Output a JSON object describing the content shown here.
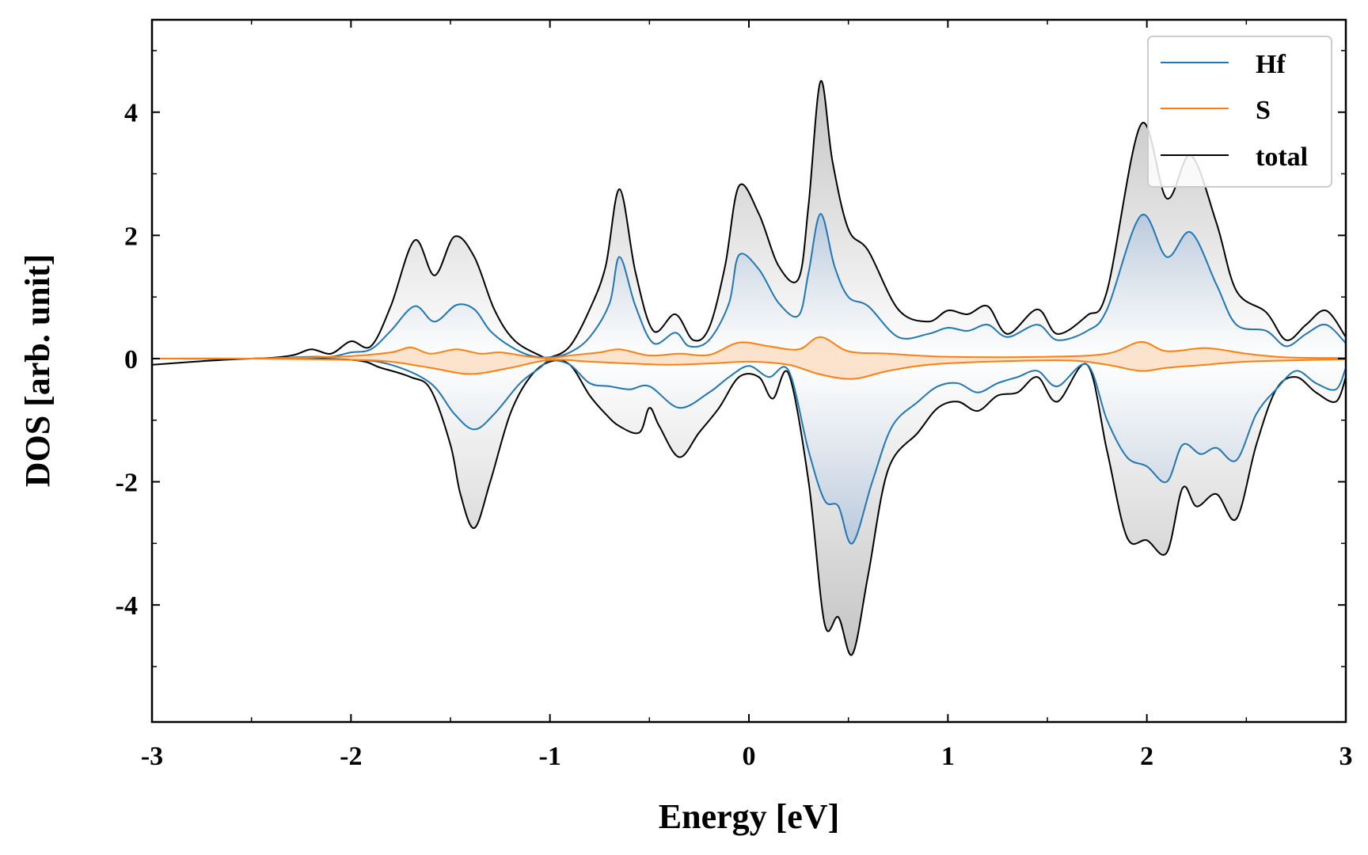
{
  "chart_data": {
    "type": "line",
    "title": "",
    "xlabel": "Energy [eV]",
    "ylabel": "DOS [arb. unit]",
    "xlim": [
      -3,
      3
    ],
    "ylim": [
      -5.9,
      5.5
    ],
    "x_ticks": [
      -3,
      -2,
      -1,
      0,
      1,
      2,
      3
    ],
    "x_tick_labels": [
      "-3",
      "-2",
      "-1",
      "0",
      "1",
      "2",
      "3"
    ],
    "y_ticks": [
      -4,
      -2,
      0,
      2,
      4
    ],
    "y_tick_labels": [
      "-4",
      "-2",
      "0",
      "2",
      "4"
    ],
    "legend_position": "top-right",
    "colors": {
      "Hf": "#1f77b4",
      "S": "#ff7f0e",
      "total": "#000000",
      "fill_total": "#d9d9d9",
      "fill_Hf": "#c8d6e5",
      "fill_S": "#fbd7b8"
    },
    "series": [
      {
        "name": "Hf",
        "color": "#1f77b4",
        "up": [
          [
            -3,
            0
          ],
          [
            -2.5,
            0
          ],
          [
            -2.2,
            0.03
          ],
          [
            -2.1,
            0.03
          ],
          [
            -2.0,
            0.1
          ],
          [
            -1.9,
            0.15
          ],
          [
            -1.8,
            0.45
          ],
          [
            -1.68,
            0.85
          ],
          [
            -1.58,
            0.6
          ],
          [
            -1.47,
            0.87
          ],
          [
            -1.38,
            0.8
          ],
          [
            -1.3,
            0.45
          ],
          [
            -1.2,
            0.2
          ],
          [
            -1.1,
            0.05
          ],
          [
            -1.0,
            0.02
          ],
          [
            -0.9,
            0.1
          ],
          [
            -0.8,
            0.35
          ],
          [
            -0.7,
            0.9
          ],
          [
            -0.65,
            1.65
          ],
          [
            -0.57,
            0.85
          ],
          [
            -0.48,
            0.25
          ],
          [
            -0.37,
            0.42
          ],
          [
            -0.3,
            0.2
          ],
          [
            -0.2,
            0.3
          ],
          [
            -0.1,
            0.9
          ],
          [
            -0.05,
            1.68
          ],
          [
            0.05,
            1.45
          ],
          [
            0.15,
            0.9
          ],
          [
            0.25,
            0.7
          ],
          [
            0.3,
            1.4
          ],
          [
            0.36,
            2.35
          ],
          [
            0.43,
            1.5
          ],
          [
            0.5,
            1.0
          ],
          [
            0.6,
            0.85
          ],
          [
            0.75,
            0.35
          ],
          [
            0.9,
            0.4
          ],
          [
            1.0,
            0.5
          ],
          [
            1.1,
            0.45
          ],
          [
            1.2,
            0.55
          ],
          [
            1.3,
            0.35
          ],
          [
            1.45,
            0.55
          ],
          [
            1.55,
            0.3
          ],
          [
            1.7,
            0.45
          ],
          [
            1.8,
            0.8
          ],
          [
            1.97,
            2.32
          ],
          [
            2.1,
            1.65
          ],
          [
            2.22,
            2.05
          ],
          [
            2.35,
            1.2
          ],
          [
            2.45,
            0.55
          ],
          [
            2.6,
            0.45
          ],
          [
            2.7,
            0.2
          ],
          [
            2.8,
            0.4
          ],
          [
            2.9,
            0.55
          ],
          [
            3.0,
            0.25
          ]
        ]
      },
      {
        "name": "S",
        "color": "#ff7f0e",
        "up": [
          [
            -3,
            0
          ],
          [
            -2.5,
            0
          ],
          [
            -2.2,
            0.02
          ],
          [
            -2.0,
            0.04
          ],
          [
            -1.8,
            0.1
          ],
          [
            -1.7,
            0.18
          ],
          [
            -1.6,
            0.08
          ],
          [
            -1.47,
            0.15
          ],
          [
            -1.35,
            0.08
          ],
          [
            -1.25,
            0.1
          ],
          [
            -1.1,
            0.03
          ],
          [
            -1.0,
            0.01
          ],
          [
            -0.9,
            0.05
          ],
          [
            -0.75,
            0.1
          ],
          [
            -0.65,
            0.15
          ],
          [
            -0.5,
            0.05
          ],
          [
            -0.35,
            0.08
          ],
          [
            -0.2,
            0.06
          ],
          [
            -0.05,
            0.26
          ],
          [
            0.1,
            0.2
          ],
          [
            0.25,
            0.15
          ],
          [
            0.36,
            0.35
          ],
          [
            0.5,
            0.12
          ],
          [
            0.7,
            0.08
          ],
          [
            1.0,
            0.03
          ],
          [
            1.5,
            0.03
          ],
          [
            1.8,
            0.08
          ],
          [
            1.97,
            0.27
          ],
          [
            2.1,
            0.12
          ],
          [
            2.3,
            0.17
          ],
          [
            2.5,
            0.08
          ],
          [
            2.7,
            0.02
          ],
          [
            3.0,
            0.01
          ]
        ],
        "down": [
          [
            -3,
            0
          ],
          [
            -2.5,
            0
          ],
          [
            -2.0,
            -0.02
          ],
          [
            -1.8,
            -0.05
          ],
          [
            -1.6,
            -0.15
          ],
          [
            -1.4,
            -0.25
          ],
          [
            -1.2,
            -0.15
          ],
          [
            -1.0,
            -0.02
          ],
          [
            -0.8,
            -0.05
          ],
          [
            -0.6,
            -0.08
          ],
          [
            -0.4,
            -0.1
          ],
          [
            -0.2,
            -0.08
          ],
          [
            0.0,
            -0.05
          ],
          [
            0.2,
            -0.1
          ],
          [
            0.35,
            -0.25
          ],
          [
            0.52,
            -0.33
          ],
          [
            0.7,
            -0.2
          ],
          [
            0.9,
            -0.1
          ],
          [
            1.2,
            -0.05
          ],
          [
            1.6,
            -0.03
          ],
          [
            1.8,
            -0.1
          ],
          [
            1.97,
            -0.2
          ],
          [
            2.1,
            -0.15
          ],
          [
            2.3,
            -0.1
          ],
          [
            2.5,
            -0.05
          ],
          [
            3.0,
            -0.01
          ]
        ]
      },
      {
        "name": "total",
        "color": "#000000",
        "up": [
          [
            -3,
            0
          ],
          [
            -2.5,
            0
          ],
          [
            -2.3,
            0.05
          ],
          [
            -2.2,
            0.15
          ],
          [
            -2.1,
            0.08
          ],
          [
            -2.0,
            0.28
          ],
          [
            -1.9,
            0.2
          ],
          [
            -1.8,
            0.85
          ],
          [
            -1.68,
            1.92
          ],
          [
            -1.58,
            1.35
          ],
          [
            -1.48,
            1.98
          ],
          [
            -1.38,
            1.65
          ],
          [
            -1.28,
            0.8
          ],
          [
            -1.18,
            0.3
          ],
          [
            -1.05,
            0.05
          ],
          [
            -1.0,
            0.02
          ],
          [
            -0.9,
            0.2
          ],
          [
            -0.8,
            0.8
          ],
          [
            -0.72,
            1.5
          ],
          [
            -0.65,
            2.75
          ],
          [
            -0.57,
            1.4
          ],
          [
            -0.48,
            0.45
          ],
          [
            -0.37,
            0.72
          ],
          [
            -0.28,
            0.3
          ],
          [
            -0.2,
            0.5
          ],
          [
            -0.12,
            1.5
          ],
          [
            -0.05,
            2.8
          ],
          [
            0.05,
            2.35
          ],
          [
            0.15,
            1.5
          ],
          [
            0.25,
            1.3
          ],
          [
            0.3,
            2.5
          ],
          [
            0.36,
            4.5
          ],
          [
            0.42,
            3.2
          ],
          [
            0.5,
            2.1
          ],
          [
            0.6,
            1.75
          ],
          [
            0.75,
            0.8
          ],
          [
            0.9,
            0.6
          ],
          [
            1.0,
            0.78
          ],
          [
            1.1,
            0.72
          ],
          [
            1.2,
            0.85
          ],
          [
            1.3,
            0.4
          ],
          [
            1.45,
            0.8
          ],
          [
            1.55,
            0.4
          ],
          [
            1.7,
            0.7
          ],
          [
            1.8,
            1.1
          ],
          [
            1.97,
            3.8
          ],
          [
            2.1,
            2.6
          ],
          [
            2.22,
            3.3
          ],
          [
            2.35,
            2.2
          ],
          [
            2.45,
            1.1
          ],
          [
            2.6,
            0.75
          ],
          [
            2.7,
            0.3
          ],
          [
            2.8,
            0.55
          ],
          [
            2.9,
            0.78
          ],
          [
            3.0,
            0.35
          ]
        ],
        "down": [
          [
            -3,
            -0.1
          ],
          [
            -2.5,
            0
          ],
          [
            -2.0,
            -0.02
          ],
          [
            -1.85,
            -0.15
          ],
          [
            -1.7,
            -0.3
          ],
          [
            -1.6,
            -0.5
          ],
          [
            -1.5,
            -1.4
          ],
          [
            -1.45,
            -2.2
          ],
          [
            -1.38,
            -2.75
          ],
          [
            -1.3,
            -2.0
          ],
          [
            -1.2,
            -0.9
          ],
          [
            -1.1,
            -0.3
          ],
          [
            -1.0,
            -0.05
          ],
          [
            -0.9,
            -0.1
          ],
          [
            -0.8,
            -0.6
          ],
          [
            -0.72,
            -0.9
          ],
          [
            -0.65,
            -1.1
          ],
          [
            -0.55,
            -1.2
          ],
          [
            -0.5,
            -0.8
          ],
          [
            -0.45,
            -1.1
          ],
          [
            -0.35,
            -1.6
          ],
          [
            -0.25,
            -1.2
          ],
          [
            -0.15,
            -0.8
          ],
          [
            -0.05,
            -0.3
          ],
          [
            0.05,
            -0.3
          ],
          [
            0.12,
            -0.65
          ],
          [
            0.2,
            -0.25
          ],
          [
            0.3,
            -2.0
          ],
          [
            0.38,
            -4.3
          ],
          [
            0.45,
            -4.2
          ],
          [
            0.52,
            -4.8
          ],
          [
            0.6,
            -3.5
          ],
          [
            0.7,
            -1.8
          ],
          [
            0.85,
            -1.2
          ],
          [
            0.95,
            -0.8
          ],
          [
            1.05,
            -0.7
          ],
          [
            1.15,
            -0.85
          ],
          [
            1.25,
            -0.6
          ],
          [
            1.35,
            -0.55
          ],
          [
            1.45,
            -0.3
          ],
          [
            1.55,
            -0.7
          ],
          [
            1.7,
            -0.1
          ],
          [
            1.8,
            -1.5
          ],
          [
            1.9,
            -2.9
          ],
          [
            2.0,
            -2.95
          ],
          [
            2.1,
            -3.15
          ],
          [
            2.18,
            -2.1
          ],
          [
            2.25,
            -2.4
          ],
          [
            2.35,
            -2.2
          ],
          [
            2.45,
            -2.6
          ],
          [
            2.55,
            -1.4
          ],
          [
            2.65,
            -0.5
          ],
          [
            2.75,
            -0.3
          ],
          [
            2.85,
            -0.55
          ],
          [
            2.95,
            -0.7
          ],
          [
            3.0,
            -0.3
          ]
        ]
      }
    ],
    "hf_down": [
      [
        -3,
        0
      ],
      [
        -2.5,
        0
      ],
      [
        -2.0,
        -0.02
      ],
      [
        -1.8,
        -0.1
      ],
      [
        -1.6,
        -0.4
      ],
      [
        -1.48,
        -0.9
      ],
      [
        -1.38,
        -1.15
      ],
      [
        -1.28,
        -0.9
      ],
      [
        -1.15,
        -0.4
      ],
      [
        -1.05,
        -0.15
      ],
      [
        -1.0,
        -0.03
      ],
      [
        -0.9,
        -0.1
      ],
      [
        -0.8,
        -0.4
      ],
      [
        -0.7,
        -0.45
      ],
      [
        -0.6,
        -0.5
      ],
      [
        -0.5,
        -0.45
      ],
      [
        -0.35,
        -0.8
      ],
      [
        -0.2,
        -0.55
      ],
      [
        -0.1,
        -0.3
      ],
      [
        0.0,
        -0.12
      ],
      [
        0.1,
        -0.3
      ],
      [
        0.2,
        -0.2
      ],
      [
        0.3,
        -1.5
      ],
      [
        0.38,
        -2.3
      ],
      [
        0.45,
        -2.4
      ],
      [
        0.52,
        -3.0
      ],
      [
        0.62,
        -2.0
      ],
      [
        0.72,
        -1.1
      ],
      [
        0.85,
        -0.7
      ],
      [
        0.95,
        -0.45
      ],
      [
        1.05,
        -0.4
      ],
      [
        1.15,
        -0.55
      ],
      [
        1.25,
        -0.4
      ],
      [
        1.35,
        -0.3
      ],
      [
        1.45,
        -0.2
      ],
      [
        1.55,
        -0.45
      ],
      [
        1.7,
        -0.1
      ],
      [
        1.8,
        -1.0
      ],
      [
        1.9,
        -1.6
      ],
      [
        2.0,
        -1.75
      ],
      [
        2.1,
        -2.0
      ],
      [
        2.18,
        -1.4
      ],
      [
        2.27,
        -1.55
      ],
      [
        2.35,
        -1.45
      ],
      [
        2.45,
        -1.65
      ],
      [
        2.55,
        -0.9
      ],
      [
        2.65,
        -0.5
      ],
      [
        2.75,
        -0.2
      ],
      [
        2.85,
        -0.4
      ],
      [
        2.95,
        -0.5
      ],
      [
        3.0,
        -0.15
      ]
    ]
  }
}
